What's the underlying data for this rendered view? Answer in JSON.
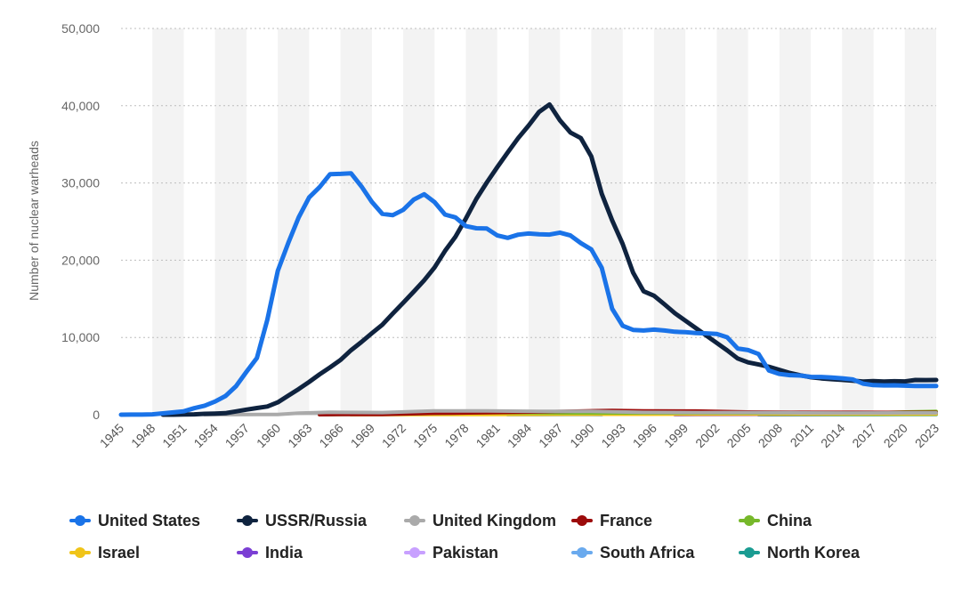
{
  "chart_data": {
    "type": "line",
    "title": "",
    "xlabel": "",
    "ylabel": "Number of nuclear warheads",
    "ylim": [
      0,
      50000
    ],
    "y_ticks": [
      0,
      10000,
      20000,
      30000,
      40000,
      50000
    ],
    "y_tick_labels": [
      "0",
      "10,000",
      "20,000",
      "30,000",
      "40,000",
      "50,000"
    ],
    "x_range": [
      1945,
      2023
    ],
    "x_ticks": [
      1945,
      1948,
      1951,
      1954,
      1957,
      1960,
      1963,
      1966,
      1969,
      1972,
      1975,
      1978,
      1981,
      1984,
      1987,
      1990,
      1993,
      1996,
      1999,
      2002,
      2005,
      2008,
      2011,
      2014,
      2017,
      2020,
      2023
    ],
    "x_tick_labels": [
      "1945",
      "1948",
      "1951",
      "1954",
      "1957",
      "1960",
      "1963",
      "1966",
      "1969",
      "1972",
      "1975",
      "1978",
      "1981",
      "1984",
      "1987",
      "1990",
      "1993",
      "1996",
      "1999",
      "2002",
      "2005",
      "2008",
      "2011",
      "2014",
      "2017",
      "2020",
      "2023"
    ],
    "legend_position": "bottom",
    "series": [
      {
        "name": "United States",
        "color": "#1a73e8",
        "points": [
          [
            1945,
            2
          ],
          [
            1946,
            9
          ],
          [
            1947,
            13
          ],
          [
            1948,
            50
          ],
          [
            1949,
            170
          ],
          [
            1950,
            299
          ],
          [
            1951,
            438
          ],
          [
            1952,
            841
          ],
          [
            1953,
            1169
          ],
          [
            1954,
            1703
          ],
          [
            1955,
            2422
          ],
          [
            1956,
            3692
          ],
          [
            1957,
            5543
          ],
          [
            1958,
            7345
          ],
          [
            1959,
            12298
          ],
          [
            1960,
            18638
          ],
          [
            1961,
            22229
          ],
          [
            1962,
            25540
          ],
          [
            1963,
            28133
          ],
          [
            1964,
            29463
          ],
          [
            1965,
            31139
          ],
          [
            1966,
            31175
          ],
          [
            1967,
            31255
          ],
          [
            1968,
            29561
          ],
          [
            1969,
            27552
          ],
          [
            1970,
            26008
          ],
          [
            1971,
            25830
          ],
          [
            1972,
            26516
          ],
          [
            1973,
            27835
          ],
          [
            1974,
            28537
          ],
          [
            1975,
            27519
          ],
          [
            1976,
            25914
          ],
          [
            1977,
            25542
          ],
          [
            1978,
            24418
          ],
          [
            1979,
            24138
          ],
          [
            1980,
            24104
          ],
          [
            1981,
            23208
          ],
          [
            1982,
            22886
          ],
          [
            1983,
            23305
          ],
          [
            1984,
            23459
          ],
          [
            1985,
            23368
          ],
          [
            1986,
            23317
          ],
          [
            1987,
            23575
          ],
          [
            1988,
            23205
          ],
          [
            1989,
            22217
          ],
          [
            1990,
            21392
          ],
          [
            1991,
            19008
          ],
          [
            1992,
            13708
          ],
          [
            1993,
            11511
          ],
          [
            1994,
            10979
          ],
          [
            1995,
            10904
          ],
          [
            1996,
            11011
          ],
          [
            1997,
            10903
          ],
          [
            1998,
            10732
          ],
          [
            1999,
            10685
          ],
          [
            2000,
            10577
          ],
          [
            2001,
            10526
          ],
          [
            2002,
            10457
          ],
          [
            2003,
            10027
          ],
          [
            2004,
            8570
          ],
          [
            2005,
            8360
          ],
          [
            2006,
            7853
          ],
          [
            2007,
            5709
          ],
          [
            2008,
            5273
          ],
          [
            2009,
            5113
          ],
          [
            2010,
            5066
          ],
          [
            2011,
            4897
          ],
          [
            2012,
            4881
          ],
          [
            2013,
            4804
          ],
          [
            2014,
            4717
          ],
          [
            2015,
            4571
          ],
          [
            2016,
            4018
          ],
          [
            2017,
            3822
          ],
          [
            2018,
            3785
          ],
          [
            2019,
            3805
          ],
          [
            2020,
            3750
          ],
          [
            2021,
            3708
          ],
          [
            2022,
            3708
          ],
          [
            2023,
            3708
          ]
        ]
      },
      {
        "name": "USSR/Russia",
        "color": "#0f233f",
        "points": [
          [
            1949,
            1
          ],
          [
            1950,
            5
          ],
          [
            1951,
            25
          ],
          [
            1952,
            50
          ],
          [
            1953,
            120
          ],
          [
            1954,
            150
          ],
          [
            1955,
            200
          ],
          [
            1956,
            426
          ],
          [
            1957,
            660
          ],
          [
            1958,
            869
          ],
          [
            1959,
            1060
          ],
          [
            1960,
            1605
          ],
          [
            1961,
            2471
          ],
          [
            1962,
            3322
          ],
          [
            1963,
            4238
          ],
          [
            1964,
            5221
          ],
          [
            1965,
            6129
          ],
          [
            1966,
            7089
          ],
          [
            1967,
            8339
          ],
          [
            1968,
            9399
          ],
          [
            1969,
            10538
          ],
          [
            1970,
            11643
          ],
          [
            1971,
            13092
          ],
          [
            1972,
            14478
          ],
          [
            1973,
            15915
          ],
          [
            1974,
            17385
          ],
          [
            1975,
            19055
          ],
          [
            1976,
            21205
          ],
          [
            1977,
            23044
          ],
          [
            1978,
            25393
          ],
          [
            1979,
            27935
          ],
          [
            1980,
            30062
          ],
          [
            1981,
            32049
          ],
          [
            1982,
            33952
          ],
          [
            1983,
            35804
          ],
          [
            1984,
            37431
          ],
          [
            1985,
            39197
          ],
          [
            1986,
            40159
          ],
          [
            1987,
            38107
          ],
          [
            1988,
            36538
          ],
          [
            1989,
            35805
          ],
          [
            1990,
            33417
          ],
          [
            1991,
            28595
          ],
          [
            1992,
            25155
          ],
          [
            1993,
            22101
          ],
          [
            1994,
            18399
          ],
          [
            1995,
            15980
          ],
          [
            1996,
            15399
          ],
          [
            1997,
            14286
          ],
          [
            1998,
            13128
          ],
          [
            1999,
            12168
          ],
          [
            2000,
            11208
          ],
          [
            2001,
            10250
          ],
          [
            2002,
            9289
          ],
          [
            2003,
            8328
          ],
          [
            2004,
            7286
          ],
          [
            2005,
            6773
          ],
          [
            2006,
            6493
          ],
          [
            2007,
            6200
          ],
          [
            2008,
            5800
          ],
          [
            2009,
            5400
          ],
          [
            2010,
            5100
          ],
          [
            2011,
            4850
          ],
          [
            2012,
            4700
          ],
          [
            2013,
            4600
          ],
          [
            2014,
            4500
          ],
          [
            2015,
            4400
          ],
          [
            2016,
            4300
          ],
          [
            2017,
            4350
          ],
          [
            2018,
            4300
          ],
          [
            2019,
            4330
          ],
          [
            2020,
            4310
          ],
          [
            2021,
            4495
          ],
          [
            2022,
            4477
          ],
          [
            2023,
            4489
          ]
        ]
      },
      {
        "name": "United Kingdom",
        "color": "#aaaaaa",
        "points": [
          [
            1953,
            1
          ],
          [
            1956,
            15
          ],
          [
            1958,
            20
          ],
          [
            1960,
            30
          ],
          [
            1962,
            205
          ],
          [
            1965,
            310
          ],
          [
            1970,
            280
          ],
          [
            1975,
            500
          ],
          [
            1980,
            500
          ],
          [
            1985,
            422
          ],
          [
            1990,
            422
          ],
          [
            1995,
            300
          ],
          [
            2000,
            280
          ],
          [
            2005,
            280
          ],
          [
            2010,
            225
          ],
          [
            2015,
            215
          ],
          [
            2020,
            225
          ],
          [
            2023,
            225
          ]
        ]
      },
      {
        "name": "France",
        "color": "#9c0b0b",
        "points": [
          [
            1964,
            4
          ],
          [
            1966,
            36
          ],
          [
            1970,
            36
          ],
          [
            1975,
            188
          ],
          [
            1980,
            250
          ],
          [
            1985,
            360
          ],
          [
            1990,
            505
          ],
          [
            1992,
            540
          ],
          [
            1995,
            500
          ],
          [
            2000,
            470
          ],
          [
            2005,
            350
          ],
          [
            2010,
            300
          ],
          [
            2015,
            300
          ],
          [
            2020,
            290
          ],
          [
            2023,
            290
          ]
        ]
      },
      {
        "name": "China",
        "color": "#76b82a",
        "points": [
          [
            1964,
            1
          ],
          [
            1966,
            20
          ],
          [
            1970,
            75
          ],
          [
            1975,
            185
          ],
          [
            1980,
            280
          ],
          [
            1985,
            243
          ],
          [
            1990,
            232
          ],
          [
            1995,
            234
          ],
          [
            2000,
            232
          ],
          [
            2005,
            235
          ],
          [
            2010,
            240
          ],
          [
            2015,
            260
          ],
          [
            2018,
            280
          ],
          [
            2020,
            350
          ],
          [
            2023,
            410
          ]
        ]
      },
      {
        "name": "Israel",
        "color": "#f0c419",
        "points": [
          [
            1967,
            2
          ],
          [
            1970,
            8
          ],
          [
            1975,
            20
          ],
          [
            1980,
            31
          ],
          [
            1985,
            42
          ],
          [
            1990,
            53
          ],
          [
            1995,
            63
          ],
          [
            2000,
            72
          ],
          [
            2005,
            80
          ],
          [
            2010,
            80
          ],
          [
            2015,
            80
          ],
          [
            2020,
            90
          ],
          [
            2023,
            90
          ]
        ]
      },
      {
        "name": "India",
        "color": "#7b3fd4",
        "points": [
          [
            1998,
            10
          ],
          [
            2000,
            20
          ],
          [
            2005,
            50
          ],
          [
            2010,
            80
          ],
          [
            2015,
            110
          ],
          [
            2020,
            150
          ],
          [
            2023,
            164
          ]
        ]
      },
      {
        "name": "Pakistan",
        "color": "#c8a0ff",
        "points": [
          [
            1998,
            5
          ],
          [
            2000,
            20
          ],
          [
            2005,
            50
          ],
          [
            2010,
            70
          ],
          [
            2015,
            120
          ],
          [
            2020,
            160
          ],
          [
            2023,
            170
          ]
        ]
      },
      {
        "name": "South Africa",
        "color": "#6aaaee",
        "points": [
          [
            1982,
            1
          ],
          [
            1985,
            3
          ],
          [
            1988,
            6
          ],
          [
            1990,
            6
          ],
          [
            1991,
            0
          ]
        ]
      },
      {
        "name": "North Korea",
        "color": "#1a9c92",
        "points": [
          [
            2006,
            1
          ],
          [
            2010,
            5
          ],
          [
            2015,
            10
          ],
          [
            2017,
            15
          ],
          [
            2020,
            30
          ],
          [
            2023,
            30
          ]
        ]
      }
    ]
  }
}
